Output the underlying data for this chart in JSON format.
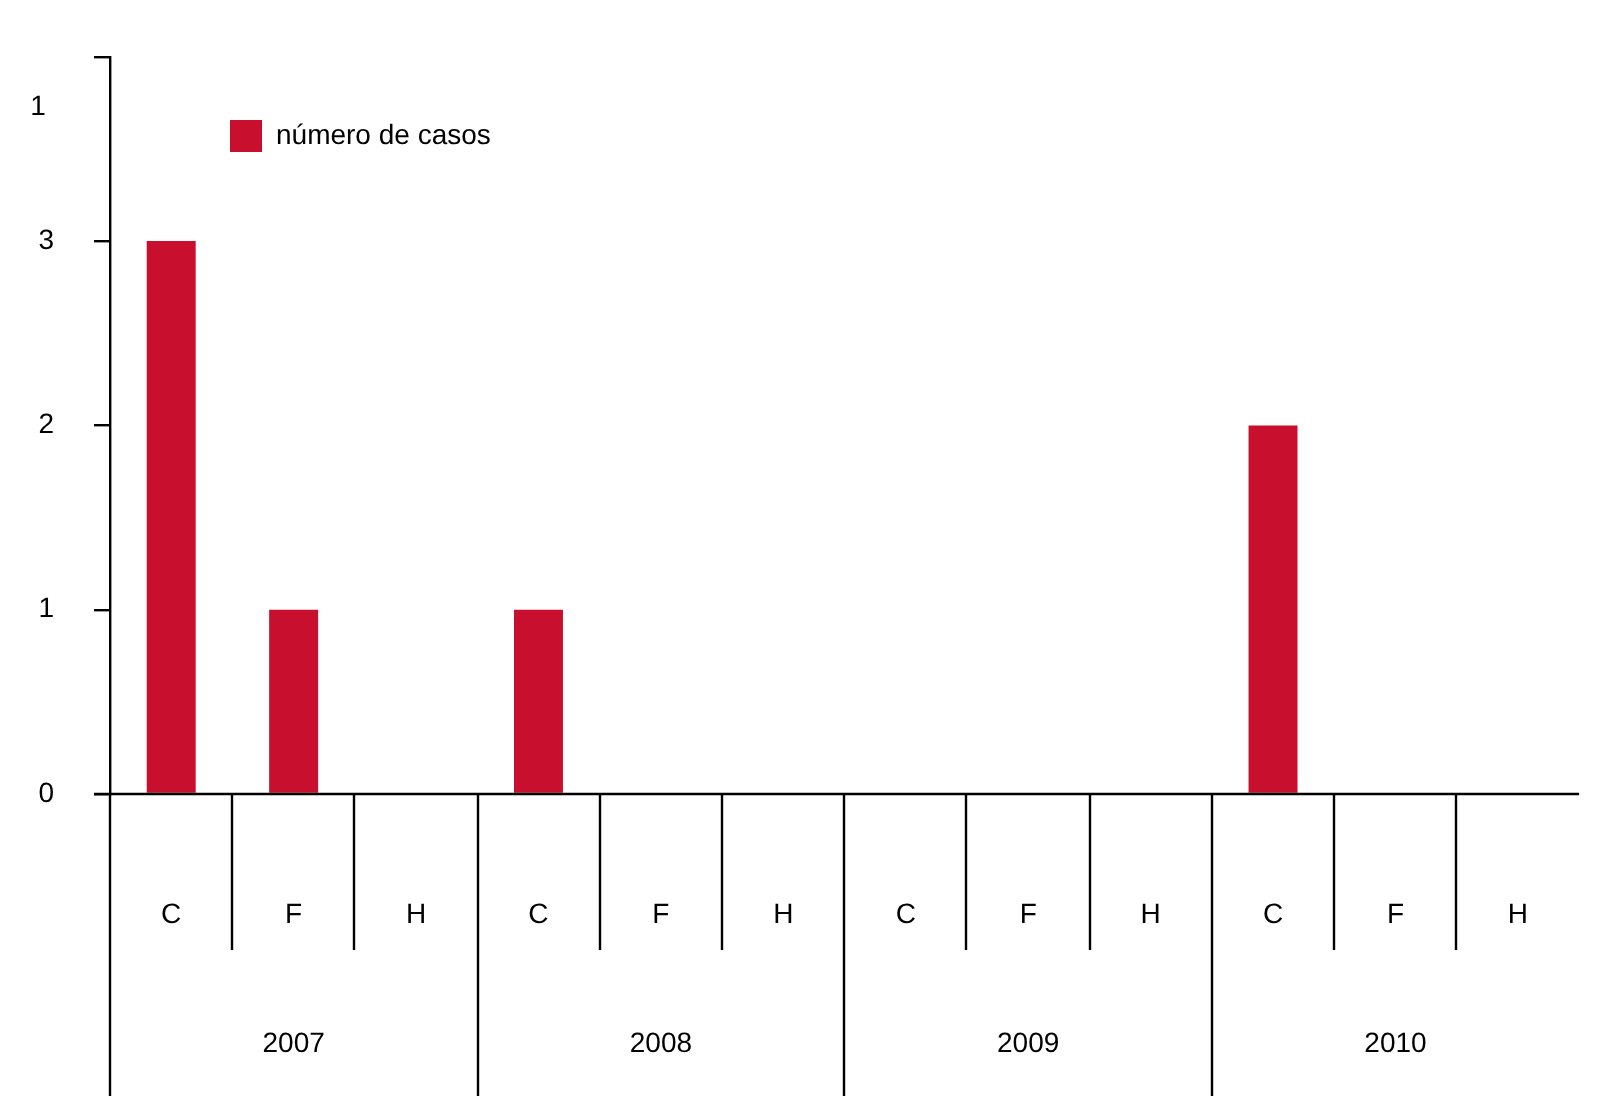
{
  "chart_data": {
    "type": "bar",
    "categories": [
      "C",
      "F",
      "H",
      "C",
      "F",
      "H",
      "C",
      "F",
      "H",
      "C",
      "F",
      "H"
    ],
    "series": [
      {
        "name": "número de casos",
        "color": "#c8102e",
        "values": [
          3,
          1,
          0,
          1,
          0,
          0,
          0,
          0,
          0,
          2,
          0,
          0
        ]
      }
    ],
    "annotations": [
      "2007",
      "2008",
      "2009",
      "2010",
      "1"
    ],
    "ylim": [
      0,
      4
    ],
    "yticks": [
      0,
      1,
      2,
      3,
      {
        "value": 4,
        "label": null
      }
    ],
    "grid": false,
    "legend": "top left"
  }
}
